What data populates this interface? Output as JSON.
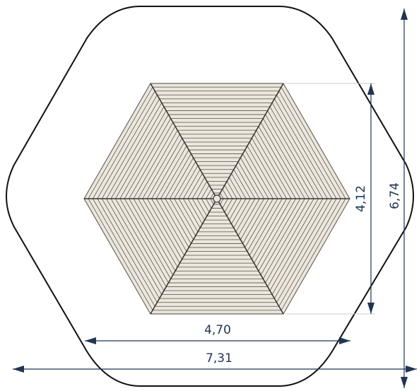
{
  "dimensions": {
    "inner_width": "4,70",
    "inner_height": "4,12",
    "outer_width": "7,31",
    "outer_height": "6,74"
  },
  "colors": {
    "outline": "#111111",
    "slat_edge": "#6e675e",
    "slat_fill": "#ece7de",
    "rib": "#3a3530",
    "dimension": "#1f3552",
    "extension": "#c9cdd3"
  }
}
